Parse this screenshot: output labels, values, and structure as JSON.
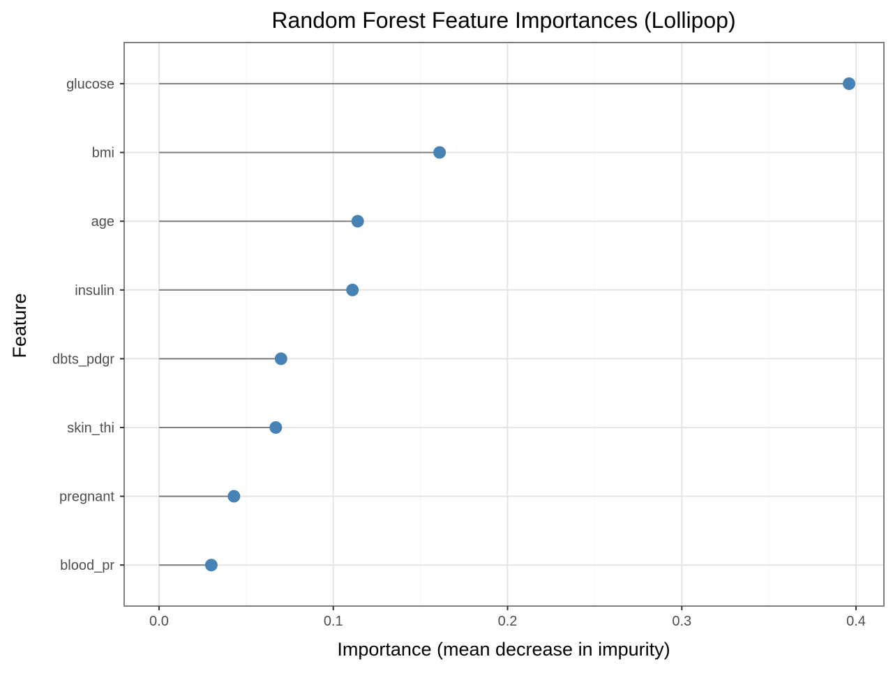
{
  "chart_data": {
    "type": "lollipop",
    "title": "Random Forest Feature Importances (Lollipop)",
    "xlabel": "Importance (mean decrease in impurity)",
    "ylabel": "Feature",
    "xlim": [
      -0.02,
      0.416
    ],
    "x_ticks": [
      0.0,
      0.1,
      0.2,
      0.3,
      0.4
    ],
    "x_tick_labels": [
      "0.0",
      "0.1",
      "0.2",
      "0.3",
      "0.4"
    ],
    "categories": [
      "glucose",
      "bmi",
      "age",
      "insulin",
      "dbts_pdgr",
      "skin_thi",
      "pregnant",
      "blood_pr"
    ],
    "values": [
      0.396,
      0.161,
      0.114,
      0.111,
      0.07,
      0.067,
      0.043,
      0.03
    ],
    "grid": true,
    "colors": {
      "point": "#4682b4",
      "stem": "#7f7f7f",
      "panel_border": "#7f7f7f",
      "grid_major": "#e5e5e5",
      "grid_minor": "#f4f4f4"
    }
  }
}
